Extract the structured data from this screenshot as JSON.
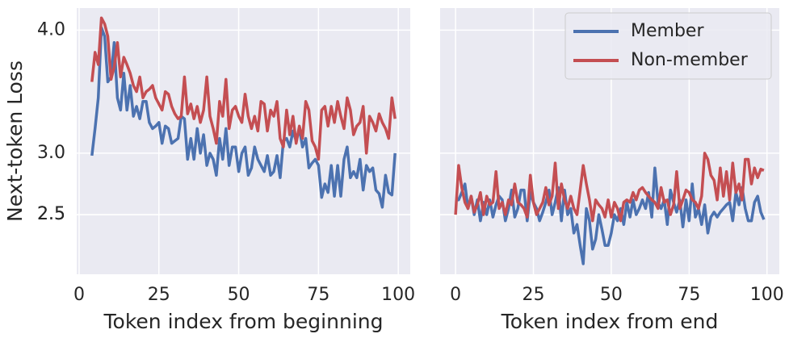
{
  "chart_data": [
    {
      "type": "line",
      "xlabel": "Token index from beginning",
      "ylabel": "Next-token Loss",
      "x": [
        4,
        5,
        6,
        7,
        8,
        9,
        10,
        11,
        12,
        13,
        14,
        15,
        16,
        17,
        18,
        19,
        20,
        21,
        22,
        23,
        24,
        25,
        26,
        27,
        28,
        29,
        30,
        31,
        32,
        33,
        34,
        35,
        36,
        37,
        38,
        39,
        40,
        41,
        42,
        43,
        44,
        45,
        46,
        47,
        48,
        49,
        50,
        51,
        52,
        53,
        54,
        55,
        56,
        57,
        58,
        59,
        60,
        61,
        62,
        63,
        64,
        65,
        66,
        67,
        68,
        69,
        70,
        71,
        72,
        73,
        74,
        75,
        76,
        77,
        78,
        79,
        80,
        81,
        82,
        83,
        84,
        85,
        86,
        87,
        88,
        89,
        90,
        91,
        92,
        93,
        94,
        95,
        96,
        97,
        98,
        99
      ],
      "series": [
        {
          "name": "Member",
          "color": "#4c72b0",
          "values": [
            2.98,
            3.2,
            3.45,
            4.02,
            3.95,
            3.58,
            3.62,
            3.9,
            3.45,
            3.35,
            3.65,
            3.35,
            3.55,
            3.3,
            3.38,
            3.28,
            3.42,
            3.42,
            3.25,
            3.2,
            3.22,
            3.25,
            3.08,
            3.22,
            3.2,
            3.08,
            3.1,
            3.12,
            3.3,
            3.28,
            2.95,
            3.12,
            2.95,
            3.2,
            3.0,
            3.15,
            2.9,
            3.0,
            2.95,
            2.82,
            3.12,
            2.95,
            3.2,
            2.9,
            3.05,
            3.05,
            2.85,
            3.0,
            3.05,
            2.82,
            2.88,
            3.05,
            2.95,
            2.9,
            2.85,
            2.98,
            2.82,
            2.85,
            2.98,
            2.8,
            3.1,
            3.12,
            3.05,
            3.18,
            3.1,
            3.2,
            3.05,
            3.12,
            2.88,
            2.92,
            2.95,
            2.9,
            2.64,
            2.75,
            2.68,
            2.9,
            2.65,
            2.9,
            2.65,
            2.95,
            3.05,
            2.8,
            2.85,
            2.8,
            2.95,
            2.7,
            2.9,
            2.85,
            2.88,
            2.7,
            2.67,
            2.56,
            2.82,
            2.68,
            2.66,
            3.0
          ]
        },
        {
          "name": "Non-member",
          "color": "#c44e52",
          "values": [
            3.58,
            3.82,
            3.72,
            4.1,
            4.05,
            3.95,
            3.6,
            3.7,
            3.9,
            3.62,
            3.78,
            3.72,
            3.65,
            3.55,
            3.5,
            3.62,
            3.45,
            3.5,
            3.52,
            3.55,
            3.45,
            3.4,
            3.35,
            3.5,
            3.48,
            3.38,
            3.32,
            3.28,
            3.3,
            3.62,
            3.32,
            3.4,
            3.28,
            3.38,
            3.25,
            3.35,
            3.62,
            3.3,
            3.2,
            3.08,
            3.42,
            3.3,
            3.6,
            3.2,
            3.35,
            3.38,
            3.3,
            3.25,
            3.48,
            3.3,
            3.2,
            3.3,
            3.18,
            3.42,
            3.4,
            3.18,
            3.35,
            3.3,
            3.42,
            3.12,
            3.05,
            3.35,
            3.15,
            3.3,
            3.08,
            3.22,
            3.12,
            3.42,
            3.35,
            3.1,
            3.05,
            2.95,
            3.35,
            3.38,
            3.22,
            3.38,
            3.25,
            3.42,
            3.3,
            3.2,
            3.45,
            3.35,
            3.15,
            3.22,
            3.25,
            3.38,
            3.0,
            3.3,
            3.25,
            3.18,
            3.32,
            3.25,
            3.2,
            3.12,
            3.45,
            3.28
          ]
        }
      ],
      "xlim": [
        -0.75,
        103.75
      ],
      "xticks": [
        0,
        25,
        50,
        75,
        100
      ],
      "ylim": [
        2.015,
        4.18
      ],
      "yticks": [
        2.5,
        {
          "value": 3,
          "label": "3.0"
        },
        2.5,
        {
          "value": 4,
          "label": "4.0"
        }
      ],
      "grid": true
    },
    {
      "type": "line",
      "xlabel": "Token index from end",
      "sharey": true,
      "legend": "upper right",
      "x": [
        0,
        1,
        2,
        3,
        4,
        5,
        6,
        7,
        8,
        9,
        10,
        11,
        12,
        13,
        14,
        15,
        16,
        17,
        18,
        19,
        20,
        21,
        22,
        23,
        24,
        25,
        26,
        27,
        28,
        29,
        30,
        31,
        32,
        33,
        34,
        35,
        36,
        37,
        38,
        39,
        40,
        41,
        42,
        43,
        44,
        45,
        46,
        47,
        48,
        49,
        50,
        51,
        52,
        53,
        54,
        55,
        56,
        57,
        58,
        59,
        60,
        61,
        62,
        63,
        64,
        65,
        66,
        67,
        68,
        69,
        70,
        71,
        72,
        73,
        74,
        75,
        76,
        77,
        78,
        79,
        80,
        81,
        82,
        83,
        84,
        85,
        86,
        87,
        88,
        89,
        90,
        91,
        92,
        93,
        94,
        95,
        96,
        97,
        98,
        99
      ],
      "series": [
        {
          "name": "Member",
          "color": "#4c72b0",
          "values": [
            2.62,
            2.62,
            2.68,
            2.75,
            2.55,
            2.65,
            2.5,
            2.62,
            2.45,
            2.6,
            2.5,
            2.62,
            2.48,
            2.58,
            2.65,
            2.62,
            2.45,
            2.55,
            2.7,
            2.48,
            2.55,
            2.7,
            2.7,
            2.45,
            2.68,
            2.6,
            2.55,
            2.45,
            2.52,
            2.6,
            2.7,
            2.5,
            2.6,
            2.72,
            2.45,
            2.7,
            2.5,
            2.55,
            2.35,
            2.42,
            2.25,
            2.1,
            2.55,
            2.45,
            2.22,
            2.3,
            2.5,
            2.38,
            2.25,
            2.25,
            2.35,
            2.5,
            2.45,
            2.55,
            2.42,
            2.6,
            2.48,
            2.62,
            2.5,
            2.55,
            2.62,
            2.55,
            2.68,
            2.48,
            2.88,
            2.6,
            2.55,
            2.62,
            2.42,
            2.7,
            2.6,
            2.52,
            2.62,
            2.4,
            2.62,
            2.45,
            2.75,
            2.48,
            2.55,
            2.42,
            2.58,
            2.35,
            2.48,
            2.52,
            2.48,
            2.52,
            2.55,
            2.58,
            2.6,
            2.45,
            2.68,
            2.58,
            2.72,
            2.55,
            2.45,
            2.45,
            2.6,
            2.65,
            2.52,
            2.46
          ]
        },
        {
          "name": "Non-member",
          "color": "#c44e52",
          "values": [
            2.5,
            2.9,
            2.72,
            2.6,
            2.55,
            2.65,
            2.52,
            2.58,
            2.68,
            2.5,
            2.65,
            2.58,
            2.6,
            2.85,
            2.55,
            2.6,
            2.5,
            2.62,
            2.58,
            2.75,
            2.6,
            2.58,
            2.55,
            2.48,
            2.82,
            2.6,
            2.5,
            2.55,
            2.6,
            2.72,
            2.58,
            2.65,
            2.92,
            2.55,
            2.75,
            2.62,
            2.55,
            2.65,
            2.55,
            2.5,
            2.7,
            2.9,
            2.75,
            2.62,
            2.45,
            2.62,
            2.58,
            2.55,
            2.48,
            2.62,
            2.48,
            2.6,
            2.55,
            2.45,
            2.6,
            2.62,
            2.6,
            2.68,
            2.62,
            2.7,
            2.72,
            2.68,
            2.65,
            2.62,
            2.6,
            2.55,
            2.72,
            2.6,
            2.62,
            2.5,
            2.58,
            2.85,
            2.55,
            2.62,
            2.7,
            2.68,
            2.62,
            2.6,
            2.55,
            2.65,
            3.0,
            2.95,
            2.82,
            2.78,
            2.62,
            2.88,
            2.65,
            2.85,
            2.62,
            2.92,
            2.68,
            2.75,
            2.62,
            2.95,
            2.95,
            2.75,
            2.88,
            2.8,
            2.87,
            2.86
          ]
        }
      ],
      "xlim": [
        -4.95,
        103.95
      ],
      "xticks": [
        0,
        25,
        50,
        75,
        100
      ],
      "grid": true
    }
  ]
}
